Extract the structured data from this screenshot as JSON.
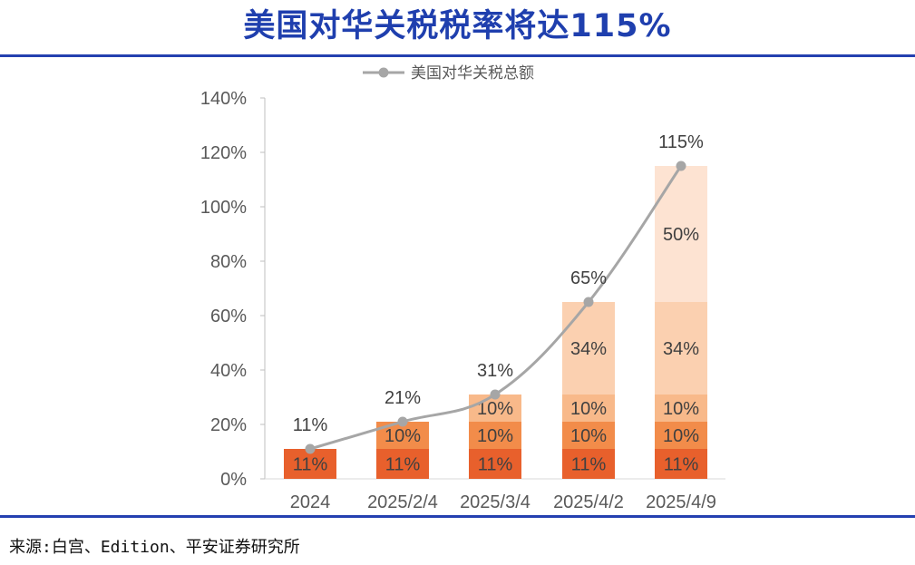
{
  "header": {
    "title": "美国对华关税税率将达115%"
  },
  "footer": {
    "source": "来源:白宫、Edition、平安证券研究所"
  },
  "colors": {
    "title": "#1f3fae",
    "rule": "#2440b0",
    "line": "#a6a6a6",
    "segments": [
      "#e8602c",
      "#f28c4a",
      "#f8b98a",
      "#fbd0b0",
      "#fde3d2"
    ]
  },
  "chart_data": {
    "type": "bar",
    "stacked": true,
    "categories": [
      "2024",
      "2025/2/4",
      "2025/3/4",
      "2025/4/2",
      "2025/4/9"
    ],
    "segments": [
      [
        11
      ],
      [
        11,
        10
      ],
      [
        11,
        10,
        10
      ],
      [
        11,
        10,
        10,
        34
      ],
      [
        11,
        10,
        10,
        34,
        50
      ]
    ],
    "segment_labels": [
      [
        "11%"
      ],
      [
        "11%",
        "10%"
      ],
      [
        "11%",
        "10%",
        "10%"
      ],
      [
        "11%",
        "10%",
        "10%",
        "34%"
      ],
      [
        "11%",
        "10%",
        "10%",
        "34%",
        "50%"
      ]
    ],
    "line_series": {
      "name": "美国对华关税总额",
      "values": [
        11,
        21,
        31,
        65,
        115
      ],
      "labels": [
        "11%",
        "21%",
        "31%",
        "65%",
        "115%"
      ]
    },
    "ylim": [
      0,
      140
    ],
    "yticks": [
      0,
      20,
      40,
      60,
      80,
      100,
      120,
      140
    ],
    "ytick_labels": [
      "0%",
      "20%",
      "40%",
      "60%",
      "80%",
      "100%",
      "120%",
      "140%"
    ],
    "legend_position": "top-center",
    "grid": false
  }
}
